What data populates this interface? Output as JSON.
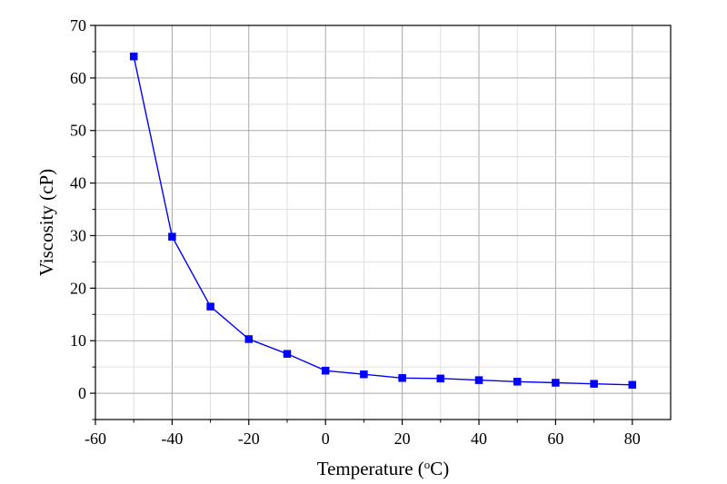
{
  "chart_data": {
    "type": "line",
    "title": "",
    "xlabel": "Temperature  (",
    "xlabel_unit_sup": "o",
    "xlabel_unit": "C)",
    "ylabel": "Viscosity  (cP)",
    "xlim": [
      -60,
      90
    ],
    "ylim": [
      -5,
      70
    ],
    "xticks": [
      -60,
      -40,
      -20,
      0,
      20,
      40,
      60,
      80
    ],
    "yticks": [
      0,
      10,
      20,
      30,
      40,
      50,
      60,
      70
    ],
    "grid": true,
    "legend": "none",
    "series": [
      {
        "color": "#0000ff",
        "marker": "square",
        "x": [
          -50,
          -40,
          -30,
          -20,
          -10,
          0,
          10,
          20,
          30,
          40,
          50,
          60,
          70,
          80
        ],
        "y": [
          64.1,
          29.8,
          16.5,
          10.3,
          7.5,
          4.3,
          3.6,
          2.9,
          2.8,
          2.5,
          2.2,
          2.0,
          1.8,
          1.6
        ]
      }
    ]
  }
}
